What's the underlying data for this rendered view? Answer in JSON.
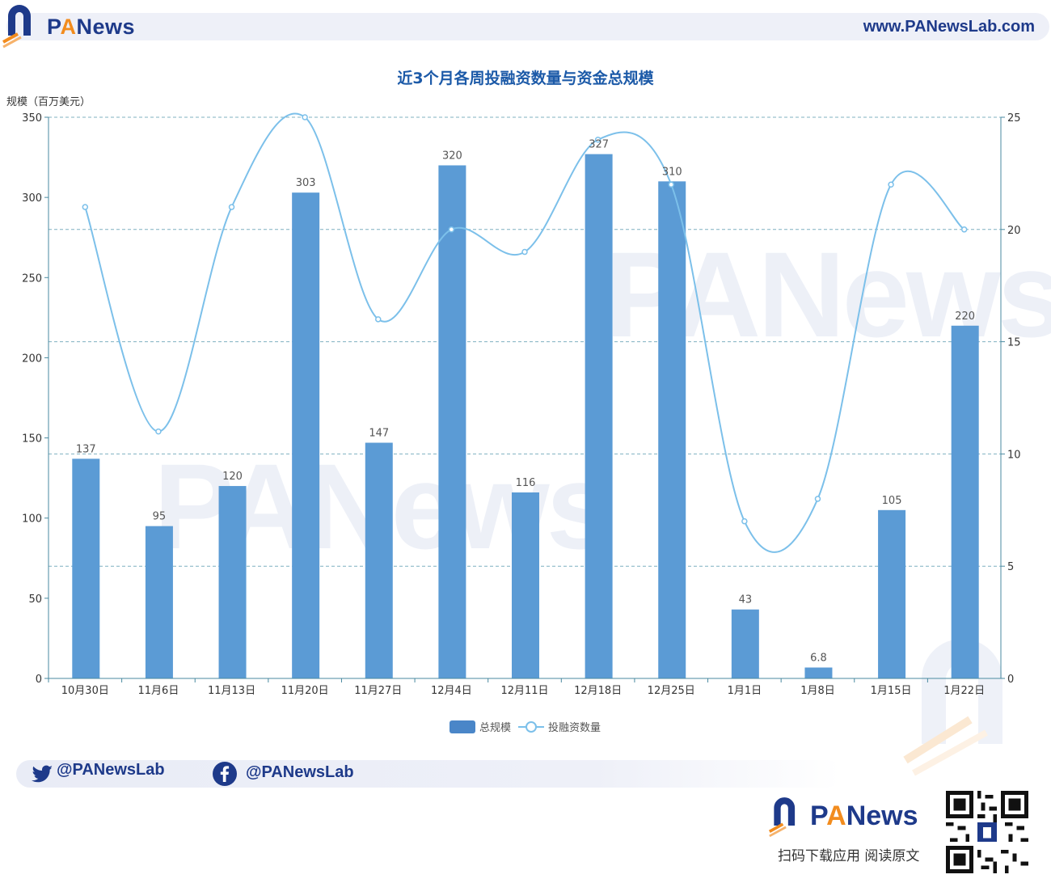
{
  "header": {
    "brand": "PANews",
    "url": "www.PANewsLab.com"
  },
  "chart_data": {
    "type": "bar",
    "title": "近3个月各周投融资数量与资金总规模",
    "ylabel": "规模（百万美元）",
    "categories": [
      "10月30日",
      "11月6日",
      "11月13日",
      "11月20日",
      "11月27日",
      "12月4日",
      "12月11日",
      "12月18日",
      "12月25日",
      "1月1日",
      "1月8日",
      "1月15日",
      "1月22日"
    ],
    "series": [
      {
        "name": "总规模",
        "type": "bar",
        "axis": "left",
        "color": "#5b9bd5",
        "values": [
          137,
          95,
          120,
          303,
          147,
          320,
          116,
          327,
          310,
          43,
          6.8,
          105,
          220
        ],
        "labels": [
          "137",
          "95",
          "120",
          "303",
          "147",
          "320",
          "116",
          "327",
          "310",
          "43",
          "6.8",
          "105",
          "220"
        ]
      },
      {
        "name": "投融资数量",
        "type": "line",
        "axis": "right",
        "color": "#7cc0ea",
        "values": [
          21,
          11,
          21,
          25,
          16,
          20,
          19,
          24,
          22,
          7,
          8,
          22,
          20
        ]
      }
    ],
    "ylim_left": [
      0,
      350
    ],
    "yticks_left": [
      "0",
      "50",
      "100",
      "150",
      "200",
      "250",
      "300",
      "350"
    ],
    "ylim_right": [
      0,
      25
    ],
    "yticks_right": [
      "0",
      "5",
      "10",
      "15",
      "20",
      "25"
    ],
    "grid": true,
    "legend_position": "bottom-center"
  },
  "footer": {
    "twitter": "@PANewsLab",
    "facebook": "@PANewsLab",
    "brand": "PANews",
    "scan_text": "扫码下载应用  阅读原文"
  },
  "colors": {
    "brand_blue": "#1e3a8a",
    "brand_orange": "#f28c1e",
    "title_blue": "#1c5aa8"
  }
}
